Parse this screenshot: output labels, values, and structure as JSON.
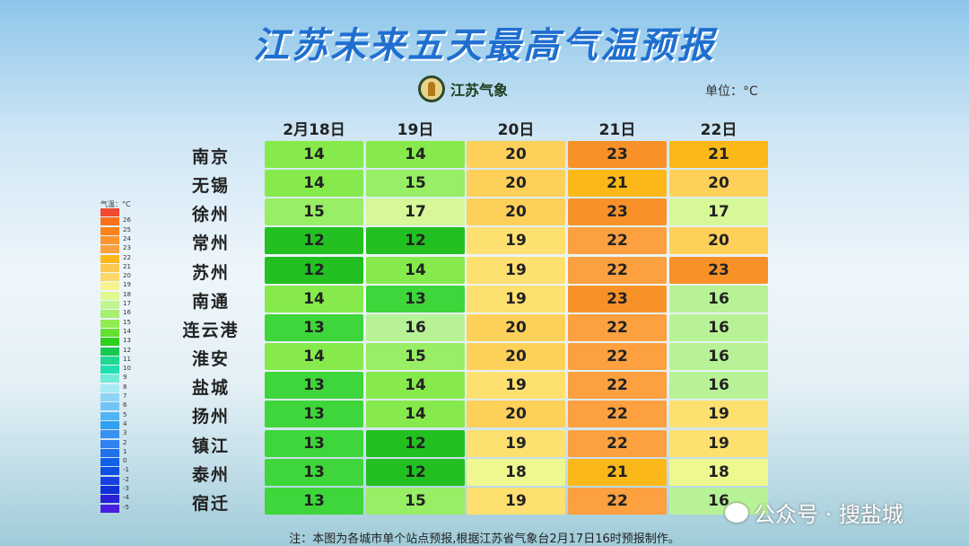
{
  "title": "江苏未来五天最高气温预报",
  "logo_text": "江苏气象",
  "unit": "单位：°C",
  "footer": "注：本图为各城市单个站点预报,根据江苏省气象台2月17日16时预报制作。",
  "watermark": "公众号 · 搜盐城",
  "chart_data": {
    "type": "heatmap",
    "columns": [
      "2月18日",
      "19日",
      "20日",
      "21日",
      "22日"
    ],
    "rows": [
      "南京",
      "无锡",
      "徐州",
      "常州",
      "苏州",
      "南通",
      "连云港",
      "淮安",
      "盐城",
      "扬州",
      "镇江",
      "泰州",
      "宿迁"
    ],
    "values": [
      [
        14,
        14,
        20,
        23,
        21
      ],
      [
        14,
        15,
        20,
        21,
        20
      ],
      [
        15,
        17,
        20,
        23,
        17
      ],
      [
        12,
        12,
        19,
        22,
        20
      ],
      [
        12,
        14,
        19,
        22,
        23
      ],
      [
        14,
        13,
        19,
        23,
        16
      ],
      [
        13,
        16,
        20,
        22,
        16
      ],
      [
        14,
        15,
        20,
        22,
        16
      ],
      [
        13,
        14,
        19,
        22,
        16
      ],
      [
        13,
        14,
        20,
        22,
        19
      ],
      [
        13,
        12,
        19,
        22,
        19
      ],
      [
        13,
        12,
        18,
        21,
        18
      ],
      [
        13,
        15,
        19,
        22,
        16
      ]
    ],
    "legend_title": "气温：°C",
    "legend_labels": [
      "26",
      "25",
      "24",
      "23",
      "22",
      "21",
      "20",
      "19",
      "18",
      "17",
      "16",
      "15",
      "14",
      "13",
      "12",
      "11",
      "10",
      "9",
      "8",
      "7",
      "6",
      "5",
      "4",
      "3",
      "2",
      "1",
      "0",
      "-1",
      "-2",
      "-3",
      "-4",
      "-5"
    ],
    "legend_colors": [
      "#f04a30",
      "#f8701a",
      "#fa8418",
      "#fb9530",
      "#fca040",
      "#fcb818",
      "#fcc850",
      "#fdd868",
      "#f6f490",
      "#e0f890",
      "#c2f490",
      "#a8f070",
      "#90ec50",
      "#66e030",
      "#2ed01c",
      "#18c850",
      "#20d890",
      "#20e0b0",
      "#70ecd8",
      "#a8eaf4",
      "#90d4f4",
      "#70c4f4",
      "#50b4f4",
      "#30a0f0",
      "#3890f0",
      "#3080f0",
      "#2070e8",
      "#1060e8",
      "#1050e0",
      "#1840e0",
      "#1030d8",
      "#2a20d8",
      "#4a20e0"
    ]
  }
}
